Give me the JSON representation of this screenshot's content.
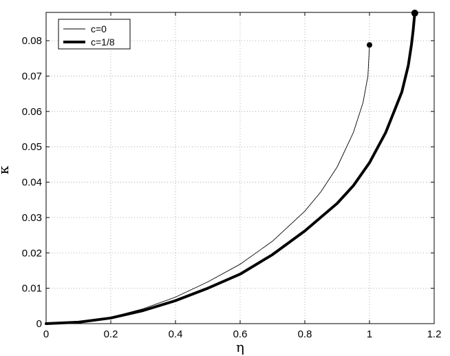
{
  "chart_data": {
    "type": "line",
    "title": "",
    "xlabel": "η",
    "ylabel": "κ",
    "xlim": [
      0,
      1.2
    ],
    "ylim": [
      0,
      0.088
    ],
    "xticks": [
      0,
      0.2,
      0.4,
      0.6,
      0.8,
      1,
      1.2
    ],
    "xtick_labels": [
      "0",
      "0.2",
      "0.4",
      "0.6",
      "0.8",
      "1",
      "1.2"
    ],
    "yticks": [
      0,
      0.01,
      0.02,
      0.03,
      0.04,
      0.05,
      0.06,
      0.07,
      0.08
    ],
    "ytick_labels": [
      "0",
      "0.01",
      "0.02",
      "0.03",
      "0.04",
      "0.05",
      "0.06",
      "0.07",
      "0.08"
    ],
    "grid": true,
    "legend_position": "top-left",
    "series": [
      {
        "name": "c=0",
        "color": "#000000",
        "style": "thin",
        "x": [
          0,
          0.1,
          0.2,
          0.3,
          0.4,
          0.5,
          0.6,
          0.7,
          0.8,
          0.85,
          0.9,
          0.95,
          0.98,
          0.995,
          1.0
        ],
        "y": [
          0,
          0.0004,
          0.0018,
          0.0042,
          0.0075,
          0.0118,
          0.0168,
          0.0233,
          0.0318,
          0.0373,
          0.0443,
          0.054,
          0.0625,
          0.07,
          0.0788
        ],
        "endpoint": {
          "x": 1.0,
          "y": 0.0788
        }
      },
      {
        "name": "c=1/8",
        "color": "#000000",
        "style": "thick",
        "x": [
          0,
          0.1,
          0.2,
          0.3,
          0.4,
          0.5,
          0.6,
          0.7,
          0.8,
          0.9,
          0.95,
          1.0,
          1.05,
          1.1,
          1.12,
          1.13,
          1.135,
          1.14
        ],
        "y": [
          0,
          0.0004,
          0.0016,
          0.0037,
          0.0065,
          0.01,
          0.014,
          0.0195,
          0.0262,
          0.034,
          0.039,
          0.0455,
          0.054,
          0.0655,
          0.073,
          0.079,
          0.083,
          0.0878
        ],
        "endpoint": {
          "x": 1.14,
          "y": 0.0878
        }
      }
    ]
  }
}
